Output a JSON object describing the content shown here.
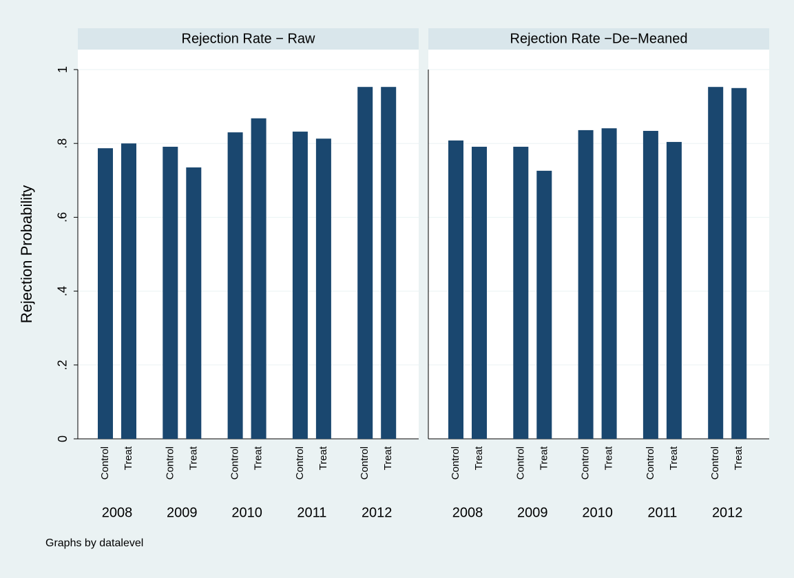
{
  "chart_data": [
    {
      "type": "bar",
      "title": "Rejection Rate − Raw",
      "ylabel": "Rejection Probability",
      "categories": [
        "2008",
        "2009",
        "2010",
        "2011",
        "2012"
      ],
      "series": [
        {
          "name": "Control",
          "color": "#1a476f",
          "values": [
            0.787,
            0.791,
            0.83,
            0.832,
            0.953
          ]
        },
        {
          "name": "Treat",
          "color": "#1a476f",
          "values": [
            0.8,
            0.735,
            0.868,
            0.813,
            0.953
          ]
        }
      ],
      "ylim": [
        0,
        1
      ],
      "yticks": [
        0,
        {
          "value": 0.2,
          "label": ".2"
        },
        {
          "value": 0.4,
          "label": ".4"
        },
        {
          "value": 0.6,
          "label": ".6"
        },
        {
          "value": 0.8,
          "label": ".8"
        },
        1
      ],
      "grid": true
    },
    {
      "type": "bar",
      "title": "Rejection Rate −De−Meaned",
      "categories": [
        "2008",
        "2009",
        "2010",
        "2011",
        "2012"
      ],
      "series": [
        {
          "name": "Control",
          "color": "#1a476f",
          "values": [
            0.808,
            0.791,
            0.836,
            0.834,
            0.953
          ]
        },
        {
          "name": "Treat",
          "color": "#1a476f",
          "values": [
            0.791,
            0.726,
            0.841,
            0.804,
            0.95
          ]
        }
      ],
      "grid": true
    }
  ],
  "note": "Graphs by datalevel"
}
